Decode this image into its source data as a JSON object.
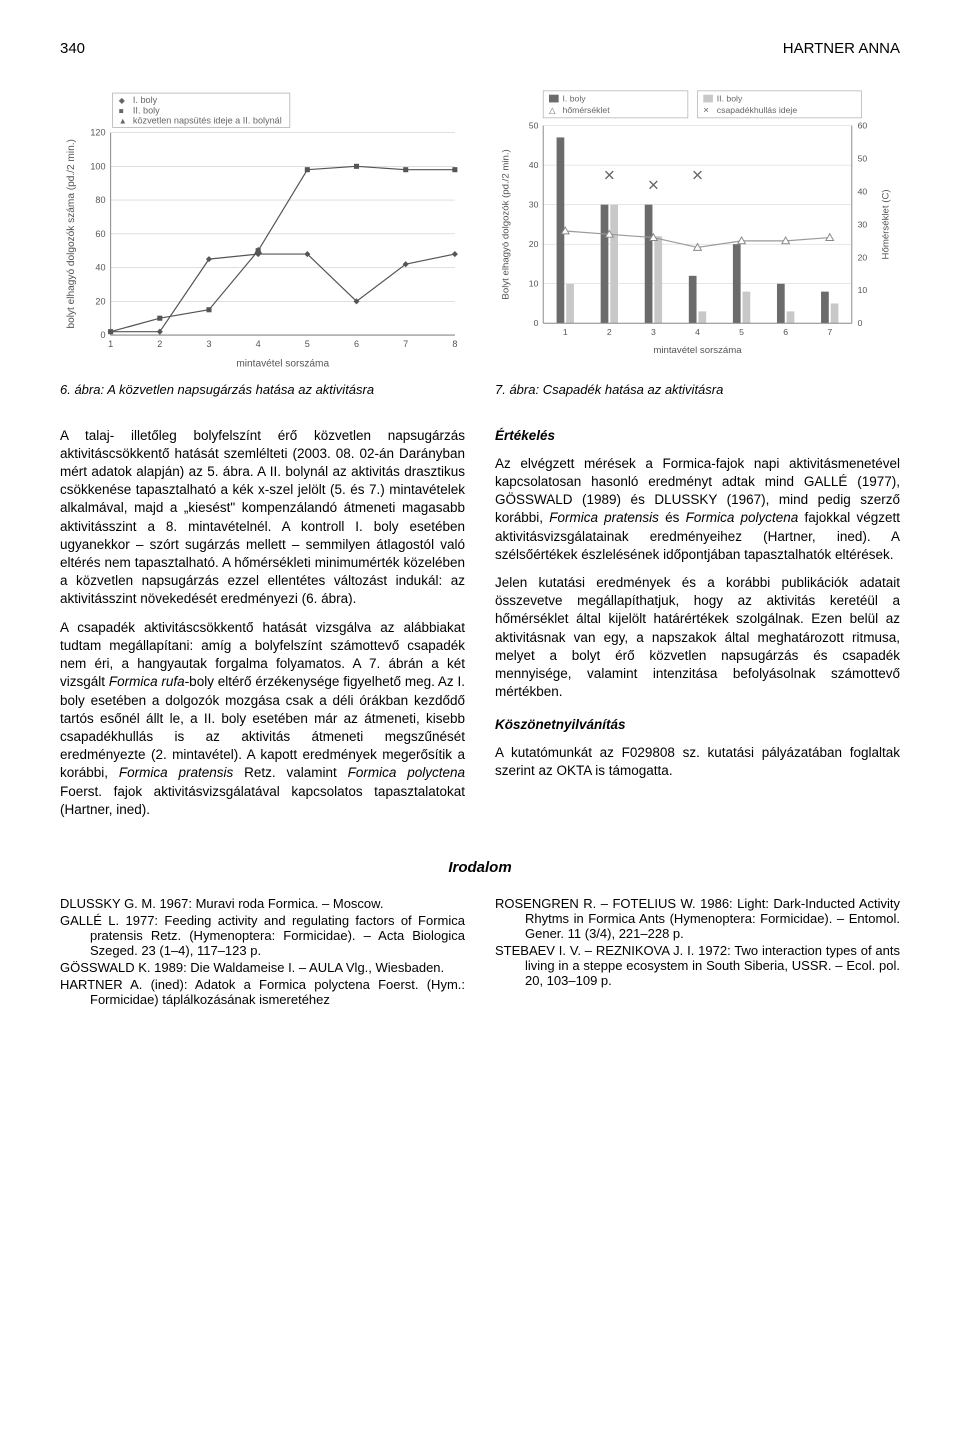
{
  "page_number": "340",
  "author": "HARTNER ANNA",
  "chart_left": {
    "type": "line",
    "xlabel": "mintavétel sorszáma",
    "ylabel": "bolyt elhagyó dolgozók száma (pd./2 min.)",
    "xlim": [
      1,
      8
    ],
    "ylim": [
      0,
      120
    ],
    "ytick_step": 20,
    "xticks": [
      1,
      2,
      3,
      4,
      5,
      6,
      7,
      8
    ],
    "legend": [
      "I. boly",
      "II. boly",
      "közvetlen napsütés ideje a II. bolynál"
    ],
    "series_colors": [
      "#555555",
      "#555555",
      "#555555"
    ],
    "series_markers": [
      "diamond",
      "square",
      "triangle"
    ],
    "series1_values": [
      2,
      2,
      45,
      48,
      48,
      20,
      42,
      48
    ],
    "series2_values": [
      2,
      10,
      15,
      50,
      98,
      100,
      98,
      98
    ],
    "series3_x": [
      4
    ],
    "series3_y": [
      50
    ],
    "line_width": 1.2,
    "background": "#ffffff",
    "grid_color": "#cccccc",
    "label_fontsize": 10
  },
  "chart_right": {
    "type": "grouped-bar-with-lines",
    "xlabel": "mintavétel sorszáma",
    "ylabel_left": "Bolyt elhagyó dolgozók (pd./2 min.)",
    "ylabel_right": "Hőmérséklet (C)",
    "xlim": [
      1,
      7
    ],
    "xticks": [
      1,
      2,
      3,
      4,
      5,
      6,
      7
    ],
    "ylim_left": [
      0,
      50
    ],
    "ytick_left_step": 10,
    "ylim_right": [
      0,
      60
    ],
    "ytick_right_step": 10,
    "legend": [
      "I. boly",
      "hőmérséklet",
      "II. boly",
      "csapadékhullás ideje"
    ],
    "bar_colors": [
      "#6b6b6b",
      "#c8c8c8"
    ],
    "line_markers": [
      "triangle-open",
      "x"
    ],
    "bars_I": [
      47,
      30,
      30,
      12,
      20,
      10,
      8
    ],
    "bars_II": [
      10,
      30,
      22,
      3,
      8,
      3,
      5
    ],
    "temp_values": [
      28,
      27,
      26,
      23,
      25,
      25,
      26
    ],
    "precip_x": [
      2,
      3,
      4
    ],
    "precip_y": [
      45,
      42,
      45
    ],
    "bar_width": 0.35,
    "background": "#ffffff",
    "grid_color": "#cccccc",
    "label_fontsize": 10
  },
  "caption_left": "6. ábra: A közvetlen napsugárzás hatása az aktivitásra",
  "caption_right": "7. ábra: Csapadék hatása az aktivitásra",
  "body": {
    "p1": "A talaj- illetőleg bolyfelszínt érő közvetlen napsugárzás aktivitáscsökkentő hatását szemlélteti (2003. 08. 02-án Darányban mért adatok alapján) az 5. ábra. A II. bolynál az aktivitás drasztikus csökkenése tapasztalható a kék x-szel jelölt (5. és 7.) mintavételek alkalmával, majd a „kiesést\" kompenzálandó átmeneti magasabb aktivitásszint a 8. mintavételnél. A kontroll I. boly esetében ugyanekkor – szórt sugárzás mellett – semmilyen átlagostól való eltérés nem tapasztalható. A hőmérsékleti minimumérték közelében a közvetlen napsugárzás ezzel ellentétes változást indukál: az aktivitásszint növekedését eredményezi (6. ábra).",
    "p2a": "A csapadék aktivitáscsökkentő hatását vizsgálva az alábbiakat tudtam megállapítani: amíg a bolyfelszínt számottevő csapadék nem éri, a hangyautak forgalma folyamatos. A 7. ábrán a két vizsgált ",
    "p2b": "Formica rufa",
    "p2c": "-boly eltérő érzékenysége figyelhető meg. Az I. boly esetében a dolgozók mozgása csak a déli órákban kezdődő tartós esőnél állt le, a II. boly esetében már az átmeneti, kisebb csapadékhullás is az aktivitás átmeneti megszűnését eredményezte (2. mintavétel). A kapott eredmények megerősítik a korábbi, ",
    "p2d": "Formica pratensis",
    "p2e": " Retz. valamint ",
    "p2f": "Formica polyctena",
    "p2g": " Foerst. fajok aktivitásvizsgálatával kapcsolatos tapasztalatokat (Hartner, ined).",
    "h1": "Értékelés",
    "p3a": "Az elvégzett mérések a Formica-fajok napi aktivitásmenetével kapcsolatosan hasonló eredményt adtak mind GALLÉ (1977), GÖSSWALD (1989) és DLUSSKY (1967), mind pedig szerző korábbi, ",
    "p3b": "Formica pratensis",
    "p3c": " és ",
    "p3d": "Formica polyctena",
    "p3e": " fajokkal végzett aktivitásvizsgálatainak eredményeihez (Hartner, ined). A szélsőértékek észlelésének időpontjában tapasztalhatók eltérések.",
    "p4": "Jelen kutatási eredmények és a korábbi publikációk adatait összevetve megállapíthatjuk, hogy az aktivitás keretéül a hőmérséklet által kijelölt határértékek szolgálnak. Ezen belül az aktivitásnak van egy, a napszakok által meghatározott ritmusa, melyet a bolyt érő közvetlen napsugárzás és csapadék mennyisége, valamint intenzitása befolyásolnak számottevő mértékben.",
    "h2": "Köszönetnyilvánítás",
    "p5": "A kutatómunkát az F029808 sz. kutatási pályázatában foglaltak szerint az OKTA is támogatta."
  },
  "refs_title": "Irodalom",
  "refs_left": [
    "DLUSSKY G. M. 1967: Muravi roda Formica. – Moscow.",
    "GALLÉ L. 1977: Feeding activity and regulating factors of Formica pratensis Retz. (Hymenoptera: Formicidae). – Acta Biologica Szeged. 23 (1–4), 117–123 p.",
    "GÖSSWALD K. 1989: Die Waldameise I. – AULA Vlg., Wiesbaden.",
    "HARTNER A. (ined): Adatok a Formica polyctena Foerst. (Hym.: Formicidae) táplálkozásának ismeretéhez"
  ],
  "refs_right": [
    "ROSENGREN R. – FOTELIUS W. 1986: Light: Dark-Inducted Activity Rhytms in Formica Ants (Hymenoptera: Formicidae). – Entomol. Gener. 11 (3/4), 221–228 p.",
    "STEBAEV I. V. – REZNIKOVA J. I. 1972: Two interaction types of ants living in a steppe ecosystem in South Siberia, USSR. – Ecol. pol. 20, 103–109 p."
  ]
}
